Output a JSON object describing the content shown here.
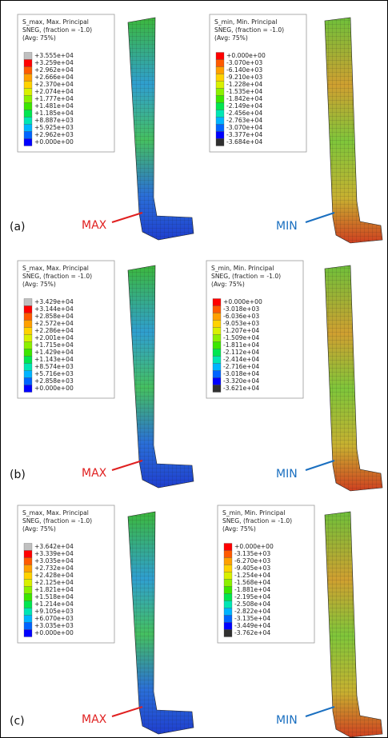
{
  "rows": [
    {
      "label": "(a)",
      "left": {
        "title": [
          "S_max, Max. Principal",
          "SNEG, (fraction = -1.0)",
          "(Avg: 75%)"
        ],
        "legend": [
          "+3.555e+04",
          "+3.259e+04",
          "+2.962e+04",
          "+2.666e+04",
          "+2.370e+04",
          "+2.074e+04",
          "+1.777e+04",
          "+1.481e+04",
          "+1.185e+04",
          "+8.887e+03",
          "+5.925e+03",
          "+2.962e+03",
          "+0.000e+00"
        ],
        "marker": "MAX"
      },
      "right": {
        "title": [
          "S_min, Min. Principal",
          "SNEG, (fraction = -1.0)",
          "(Avg: 75%)"
        ],
        "legend": [
          "+0.000e+00",
          "-3.070e+03",
          "-6.140e+03",
          "-9.210e+03",
          "-1.228e+04",
          "-1.535e+04",
          "-1.842e+04",
          "-2.149e+04",
          "-2.456e+04",
          "-2.763e+04",
          "-3.070e+04",
          "-3.377e+04",
          "-3.684e+04"
        ],
        "marker": "MIN"
      }
    },
    {
      "label": "(b)",
      "left": {
        "title": [
          "S_max, Max. Principal",
          "SNEG, (fraction = -1.0)",
          "(Avg: 75%)"
        ],
        "legend": [
          "+3.429e+04",
          "+3.144e+04",
          "+2.858e+04",
          "+2.572e+04",
          "+2.286e+04",
          "+2.001e+04",
          "+1.715e+04",
          "+1.429e+04",
          "+1.143e+04",
          "+8.574e+03",
          "+5.716e+03",
          "+2.858e+03",
          "+0.000e+00"
        ],
        "marker": "MAX"
      },
      "right": {
        "title": [
          "S_min, Min. Principal",
          "SNEG, (fraction = -1.0)",
          "(Avg: 75%)"
        ],
        "legend": [
          "+0.000e+00",
          "-3.018e+03",
          "-6.036e+03",
          "-9.053e+03",
          "-1.207e+04",
          "-1.509e+04",
          "-1.811e+04",
          "-2.112e+04",
          "-2.414e+04",
          "-2.716e+04",
          "-3.018e+04",
          "-3.320e+04",
          "-3.621e+04"
        ],
        "marker": "MIN"
      }
    },
    {
      "label": "(c)",
      "left": {
        "title": [
          "S_max, Max. Principal",
          "SNEG, (fraction = -1.0)",
          "(Avg: 75%)"
        ],
        "legend": [
          "+3.642e+04",
          "+3.339e+04",
          "+3.035e+04",
          "+2.732e+04",
          "+2.428e+04",
          "+2.125e+04",
          "+1.821e+04",
          "+1.518e+04",
          "+1.214e+04",
          "+9.105e+03",
          "+6.070e+03",
          "+3.035e+03",
          "+0.000e+00"
        ],
        "marker": "MAX"
      },
      "right": {
        "title": [
          "S_min, Min. Principal",
          "SNEG, (fraction = -1.0)",
          "(Avg: 75%)"
        ],
        "legend": [
          "+0.000e+00",
          "-3.135e+03",
          "-6.270e+03",
          "-9.405e+03",
          "-1.254e+04",
          "-1.568e+04",
          "-1.881e+04",
          "-2.195e+04",
          "-2.508e+04",
          "-2.822e+04",
          "-3.135e+04",
          "-3.449e+04",
          "-3.762e+04"
        ],
        "marker": "MIN"
      }
    }
  ]
}
